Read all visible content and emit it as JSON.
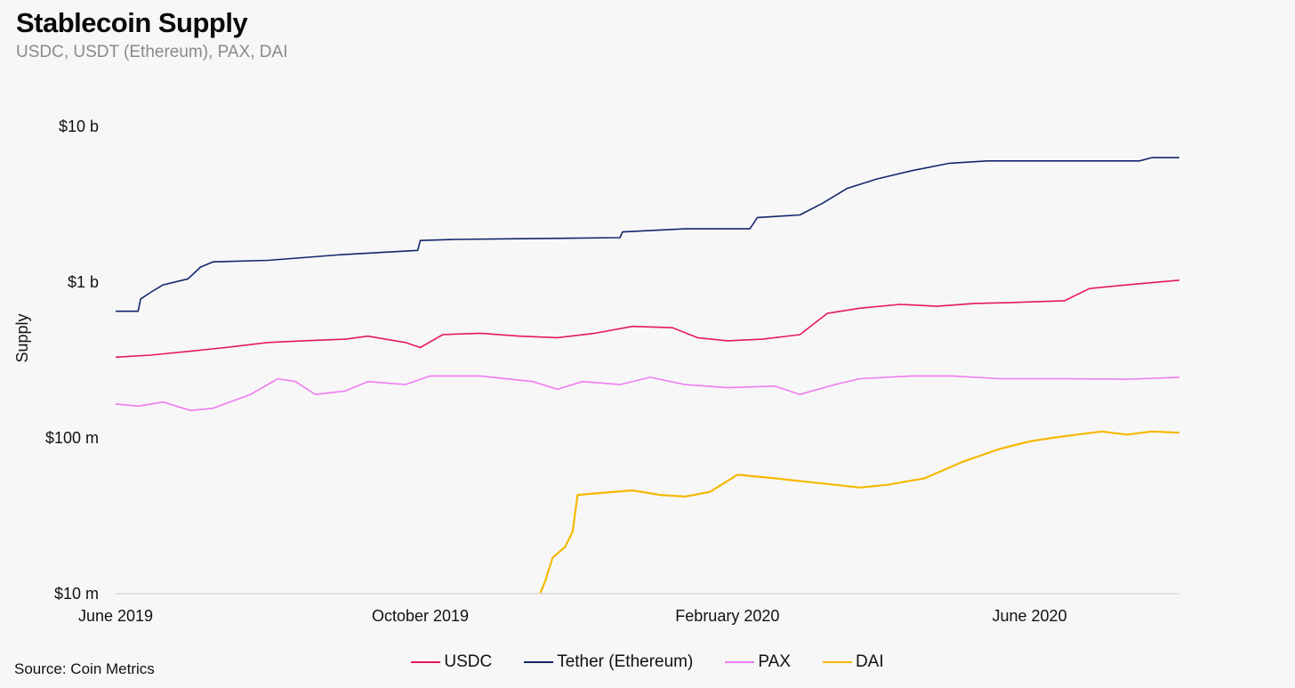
{
  "title": "Stablecoin Supply",
  "subtitle": "USDC, USDT (Ethereum), PAX, DAI",
  "source": "Source: Coin Metrics",
  "colors": {
    "USDC": "#e5195a",
    "Tether (Ethereum)": "#13266b",
    "PAX": "#ef7cf0",
    "DAI": "#f5b800",
    "axis": "#d9d9d9"
  },
  "chart_data": {
    "type": "line",
    "title": "Stablecoin Supply",
    "subtitle": "USDC, USDT (Ethereum), PAX, DAI",
    "xlabel": "",
    "ylabel": "Supply",
    "yscale": "log",
    "ylim": [
      10000000,
      10000000000
    ],
    "xlim": [
      "2019-06-01",
      "2020-07-31"
    ],
    "y_ticks": [
      10000000,
      100000000,
      1000000000,
      10000000000
    ],
    "y_tick_labels": [
      "$10 m",
      "$100 m",
      "$1 b",
      "$10 b"
    ],
    "x_ticks": [
      "2019-06-01",
      "2019-10-01",
      "2020-02-01",
      "2020-06-01"
    ],
    "x_tick_labels": [
      "June 2019",
      "October 2019",
      "February 2020",
      "June 2020"
    ],
    "grid": false,
    "legend_position": "bottom",
    "series": [
      {
        "name": "USDC",
        "points": [
          [
            "2019-06-01",
            330000000
          ],
          [
            "2019-06-15",
            340000000
          ],
          [
            "2019-07-01",
            360000000
          ],
          [
            "2019-07-15",
            380000000
          ],
          [
            "2019-08-01",
            410000000
          ],
          [
            "2019-08-15",
            420000000
          ],
          [
            "2019-09-01",
            430000000
          ],
          [
            "2019-09-10",
            450000000
          ],
          [
            "2019-09-25",
            410000000
          ],
          [
            "2019-10-01",
            380000000
          ],
          [
            "2019-10-10",
            460000000
          ],
          [
            "2019-10-25",
            470000000
          ],
          [
            "2019-11-10",
            450000000
          ],
          [
            "2019-11-25",
            440000000
          ],
          [
            "2019-12-10",
            470000000
          ],
          [
            "2019-12-25",
            520000000
          ],
          [
            "2020-01-10",
            510000000
          ],
          [
            "2020-01-20",
            440000000
          ],
          [
            "2020-02-01",
            420000000
          ],
          [
            "2020-02-15",
            430000000
          ],
          [
            "2020-03-01",
            460000000
          ],
          [
            "2020-03-12",
            630000000
          ],
          [
            "2020-03-25",
            680000000
          ],
          [
            "2020-04-10",
            720000000
          ],
          [
            "2020-04-25",
            700000000
          ],
          [
            "2020-05-10",
            730000000
          ],
          [
            "2020-05-25",
            740000000
          ],
          [
            "2020-06-15",
            760000000
          ],
          [
            "2020-06-25",
            910000000
          ],
          [
            "2020-07-10",
            960000000
          ],
          [
            "2020-07-31",
            1030000000
          ]
        ]
      },
      {
        "name": "Tether (Ethereum)",
        "points": [
          [
            "2019-06-01",
            650000000
          ],
          [
            "2019-06-10",
            650000000
          ],
          [
            "2019-06-11",
            780000000
          ],
          [
            "2019-06-15",
            860000000
          ],
          [
            "2019-06-20",
            960000000
          ],
          [
            "2019-06-30",
            1050000000
          ],
          [
            "2019-07-05",
            1250000000
          ],
          [
            "2019-07-10",
            1350000000
          ],
          [
            "2019-08-01",
            1380000000
          ],
          [
            "2019-08-30",
            1500000000
          ],
          [
            "2019-09-30",
            1600000000
          ],
          [
            "2019-10-01",
            1850000000
          ],
          [
            "2019-10-15",
            1880000000
          ],
          [
            "2019-11-10",
            1900000000
          ],
          [
            "2019-12-20",
            1930000000
          ],
          [
            "2019-12-21",
            2100000000
          ],
          [
            "2020-01-15",
            2200000000
          ],
          [
            "2020-02-10",
            2200000000
          ],
          [
            "2020-02-13",
            2600000000
          ],
          [
            "2020-03-01",
            2700000000
          ],
          [
            "2020-03-10",
            3200000000
          ],
          [
            "2020-03-20",
            4000000000
          ],
          [
            "2020-04-01",
            4600000000
          ],
          [
            "2020-04-15",
            5200000000
          ],
          [
            "2020-04-30",
            5800000000
          ],
          [
            "2020-05-15",
            6000000000
          ],
          [
            "2020-06-10",
            6000000000
          ],
          [
            "2020-07-15",
            6000000000
          ],
          [
            "2020-07-20",
            6300000000
          ],
          [
            "2020-07-31",
            6300000000
          ]
        ]
      },
      {
        "name": "PAX",
        "points": [
          [
            "2019-06-01",
            165000000
          ],
          [
            "2019-06-10",
            160000000
          ],
          [
            "2019-06-20",
            170000000
          ],
          [
            "2019-07-01",
            150000000
          ],
          [
            "2019-07-10",
            155000000
          ],
          [
            "2019-07-25",
            190000000
          ],
          [
            "2019-08-05",
            240000000
          ],
          [
            "2019-08-12",
            230000000
          ],
          [
            "2019-08-20",
            190000000
          ],
          [
            "2019-09-01",
            200000000
          ],
          [
            "2019-09-10",
            230000000
          ],
          [
            "2019-09-25",
            220000000
          ],
          [
            "2019-10-05",
            250000000
          ],
          [
            "2019-10-25",
            250000000
          ],
          [
            "2019-11-15",
            230000000
          ],
          [
            "2019-11-25",
            205000000
          ],
          [
            "2019-12-05",
            230000000
          ],
          [
            "2019-12-20",
            220000000
          ],
          [
            "2020-01-01",
            245000000
          ],
          [
            "2020-01-15",
            220000000
          ],
          [
            "2020-02-01",
            210000000
          ],
          [
            "2020-02-20",
            215000000
          ],
          [
            "2020-03-01",
            190000000
          ],
          [
            "2020-03-15",
            220000000
          ],
          [
            "2020-03-25",
            240000000
          ],
          [
            "2020-04-15",
            250000000
          ],
          [
            "2020-05-01",
            250000000
          ],
          [
            "2020-05-20",
            240000000
          ],
          [
            "2020-06-15",
            240000000
          ],
          [
            "2020-07-10",
            238000000
          ],
          [
            "2020-07-31",
            245000000
          ]
        ]
      },
      {
        "name": "DAI",
        "points": [
          [
            "2019-11-18",
            10000000
          ],
          [
            "2019-11-20",
            12000000
          ],
          [
            "2019-11-23",
            17000000
          ],
          [
            "2019-11-28",
            20000000
          ],
          [
            "2019-12-01",
            25000000
          ],
          [
            "2019-12-03",
            43000000
          ],
          [
            "2019-12-10",
            44000000
          ],
          [
            "2019-12-25",
            46000000
          ],
          [
            "2020-01-05",
            43000000
          ],
          [
            "2020-01-15",
            42000000
          ],
          [
            "2020-01-25",
            45000000
          ],
          [
            "2020-02-05",
            58000000
          ],
          [
            "2020-02-20",
            55000000
          ],
          [
            "2020-03-05",
            52000000
          ],
          [
            "2020-03-15",
            50000000
          ],
          [
            "2020-03-25",
            48000000
          ],
          [
            "2020-04-05",
            50000000
          ],
          [
            "2020-04-20",
            55000000
          ],
          [
            "2020-05-05",
            70000000
          ],
          [
            "2020-05-20",
            85000000
          ],
          [
            "2020-06-01",
            95000000
          ],
          [
            "2020-06-10",
            100000000
          ],
          [
            "2020-06-20",
            105000000
          ],
          [
            "2020-06-30",
            110000000
          ],
          [
            "2020-07-10",
            105000000
          ],
          [
            "2020-07-20",
            110000000
          ],
          [
            "2020-07-31",
            108000000
          ]
        ]
      }
    ]
  }
}
